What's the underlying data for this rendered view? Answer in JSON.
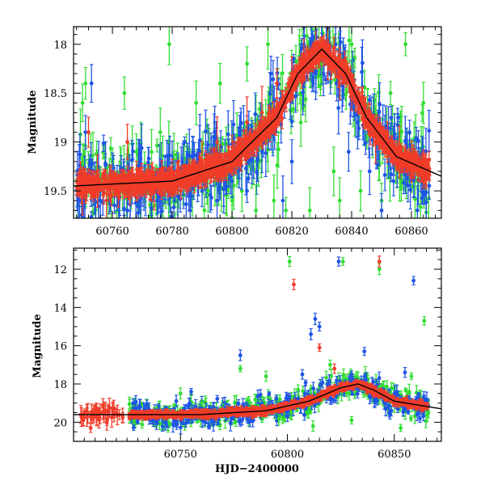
{
  "chart_data": [
    {
      "type": "scatter",
      "title": "",
      "xlabel": "",
      "ylabel": "Magnitude",
      "xlim": [
        60747,
        60870
      ],
      "ylim": [
        19.78,
        17.82
      ],
      "y_inverted": true,
      "grid": false,
      "xticks": [
        60760,
        60780,
        60800,
        60820,
        60840,
        60860
      ],
      "yticks": [
        18,
        18.5,
        19,
        19.5
      ],
      "ytick_labels": [
        "18",
        "18.5",
        "19",
        "19.5"
      ],
      "colors": {
        "green": "#33dd33",
        "blue": "#1f55e6",
        "red": "#f03c28",
        "model": "#000000"
      },
      "model_curve": {
        "x": [
          60747,
          60780,
          60800,
          60815,
          60822,
          60830,
          60838,
          60845,
          60855,
          60870
        ],
        "y": [
          19.45,
          19.4,
          19.2,
          18.75,
          18.3,
          18.05,
          18.3,
          18.75,
          19.15,
          19.35
        ]
      },
      "series": [
        {
          "color_key": "green",
          "points": [
            [
              60750,
              18.6
            ],
            [
              60751,
              18.4
            ],
            [
              60756,
              19.4
            ],
            [
              60760,
              19.2
            ],
            [
              60764,
              18.5
            ],
            [
              60768,
              19.1
            ],
            [
              60772,
              19.4
            ],
            [
              60776,
              18.9
            ],
            [
              60779,
              18.0
            ],
            [
              60784,
              19.3
            ],
            [
              60788,
              18.6
            ],
            [
              60792,
              19.5
            ],
            [
              60796,
              18.4
            ],
            [
              60800,
              19.6
            ],
            [
              60805,
              18.2
            ],
            [
              60808,
              19.7
            ],
            [
              60812,
              18.0
            ],
            [
              60814,
              19.6
            ],
            [
              60818,
              19.7
            ],
            [
              60823,
              18.8
            ],
            [
              60826,
              19.7
            ],
            [
              60830,
              18.2
            ],
            [
              60834,
              19.3
            ],
            [
              60836,
              19.6
            ],
            [
              60840,
              18.0
            ],
            [
              60843,
              19.5
            ],
            [
              60846,
              18.8
            ],
            [
              60850,
              19.6
            ],
            [
              60853,
              18.5
            ],
            [
              60856,
              19.2
            ],
            [
              60858,
              18.0
            ],
            [
              60862,
              19.7
            ],
            [
              60864,
              18.6
            ]
          ]
        },
        {
          "color_key": "blue",
          "points": [
            [
              60749,
              19.6
            ],
            [
              60751,
              18.9
            ],
            [
              60753,
              18.4
            ],
            [
              60756,
              19.6
            ],
            [
              60760,
              19.3
            ],
            [
              60765,
              19.7
            ],
            [
              60770,
              19.5
            ],
            [
              60775,
              19.6
            ],
            [
              60781,
              19.4
            ],
            [
              60786,
              19.7
            ],
            [
              60790,
              19.5
            ],
            [
              60795,
              19.6
            ],
            [
              60800,
              19.4
            ],
            [
              60805,
              19.5
            ],
            [
              60810,
              19.1
            ],
            [
              60813,
              18.3
            ],
            [
              60817,
              19.6
            ],
            [
              60820,
              19.2
            ],
            [
              60824,
              18.0
            ],
            [
              60828,
              18.3
            ],
            [
              60832,
              18.2
            ],
            [
              60835,
              18.4
            ],
            [
              60839,
              19.1
            ],
            [
              60842,
              18.8
            ],
            [
              60846,
              19.3
            ],
            [
              60850,
              19.7
            ],
            [
              60854,
              19.4
            ],
            [
              60858,
              19.2
            ],
            [
              60862,
              19.7
            ]
          ]
        },
        {
          "color_key": "red",
          "points": [
            [
              60750,
              19.5
            ],
            [
              60752,
              18.9
            ],
            [
              60755,
              19.4
            ],
            [
              60758,
              19.6
            ],
            [
              60762,
              19.5
            ],
            [
              60765,
              19.0
            ],
            [
              60768,
              19.4
            ],
            [
              60774,
              19.5
            ],
            [
              60780,
              19.3
            ],
            [
              60785,
              19.4
            ],
            [
              60790,
              19.2
            ],
            [
              60795,
              19.0
            ],
            [
              60800,
              19.1
            ],
            [
              60805,
              18.8
            ],
            [
              60810,
              18.7
            ],
            [
              60815,
              18.4
            ],
            [
              60820,
              18.3
            ],
            [
              60824,
              18.1
            ],
            [
              60828,
              18.0
            ],
            [
              60832,
              18.1
            ],
            [
              60836,
              18.3
            ],
            [
              60840,
              18.5
            ],
            [
              60844,
              18.7
            ],
            [
              60848,
              19.0
            ],
            [
              60852,
              19.0
            ],
            [
              60856,
              19.1
            ],
            [
              60860,
              19.2
            ],
            [
              60864,
              19.3
            ]
          ]
        }
      ]
    },
    {
      "type": "scatter",
      "title": "",
      "xlabel": "HJD−2400000",
      "ylabel": "Magnitude",
      "xlim": [
        60700,
        60872
      ],
      "ylim": [
        21.0,
        10.9
      ],
      "y_inverted": true,
      "grid": false,
      "xticks": [
        60750,
        60800,
        60850
      ],
      "yticks": [
        12,
        14,
        16,
        18,
        20
      ],
      "ytick_labels": [
        "12",
        "14",
        "16",
        "18",
        "20"
      ],
      "colors": {
        "green": "#33dd33",
        "blue": "#1f55e6",
        "red": "#f03c28",
        "model": "#000000"
      },
      "model_curve": {
        "x": [
          60700,
          60760,
          60790,
          60810,
          60825,
          60833,
          60840,
          60850,
          60872
        ],
        "y": [
          19.6,
          19.6,
          19.4,
          18.9,
          18.2,
          18.0,
          18.3,
          18.9,
          19.3
        ]
      },
      "series": [
        {
          "color_key": "green",
          "points": [
            [
              60738,
              19.5
            ],
            [
              60745,
              20.1
            ],
            [
              60750,
              18.5
            ],
            [
              60760,
              19.0
            ],
            [
              60770,
              19.3
            ],
            [
              60778,
              17.2
            ],
            [
              60785,
              18.8
            ],
            [
              60790,
              17.6
            ],
            [
              60796,
              19.8
            ],
            [
              60801,
              11.6
            ],
            [
              60805,
              18.3
            ],
            [
              60812,
              20.2
            ],
            [
              60820,
              17.0
            ],
            [
              60826,
              11.6
            ],
            [
              60830,
              19.9
            ],
            [
              60838,
              18.0
            ],
            [
              60843,
              12.0
            ],
            [
              60848,
              18.6
            ],
            [
              60853,
              20.3
            ],
            [
              60858,
              17.6
            ],
            [
              60864,
              14.7
            ],
            [
              60866,
              19.5
            ]
          ]
        },
        {
          "color_key": "blue",
          "points": [
            [
              60742,
              19.6
            ],
            [
              60748,
              20.1
            ],
            [
              60755,
              18.4
            ],
            [
              60762,
              19.8
            ],
            [
              60770,
              19.4
            ],
            [
              60778,
              16.5
            ],
            [
              60785,
              19.5
            ],
            [
              60792,
              19.2
            ],
            [
              60800,
              19.7
            ],
            [
              60807,
              17.5
            ],
            [
              60811,
              15.4
            ],
            [
              60813,
              14.6
            ],
            [
              60815,
              15.0
            ],
            [
              60820,
              18.5
            ],
            [
              60824,
              11.6
            ],
            [
              60830,
              18.3
            ],
            [
              60836,
              16.3
            ],
            [
              60842,
              18.9
            ],
            [
              60848,
              19.6
            ],
            [
              60855,
              17.4
            ],
            [
              60859,
              12.6
            ],
            [
              60862,
              19.8
            ]
          ]
        },
        {
          "color_key": "red",
          "points": [
            [
              60705,
              19.5
            ],
            [
              60708,
              20.3
            ],
            [
              60712,
              19.7
            ],
            [
              60716,
              19.4
            ],
            [
              60720,
              19.5
            ],
            [
              60803,
              12.8
            ],
            [
              60815,
              16.1
            ],
            [
              60822,
              17.2
            ],
            [
              60843,
              11.6
            ],
            [
              60850,
              18.9
            ]
          ]
        }
      ]
    }
  ]
}
